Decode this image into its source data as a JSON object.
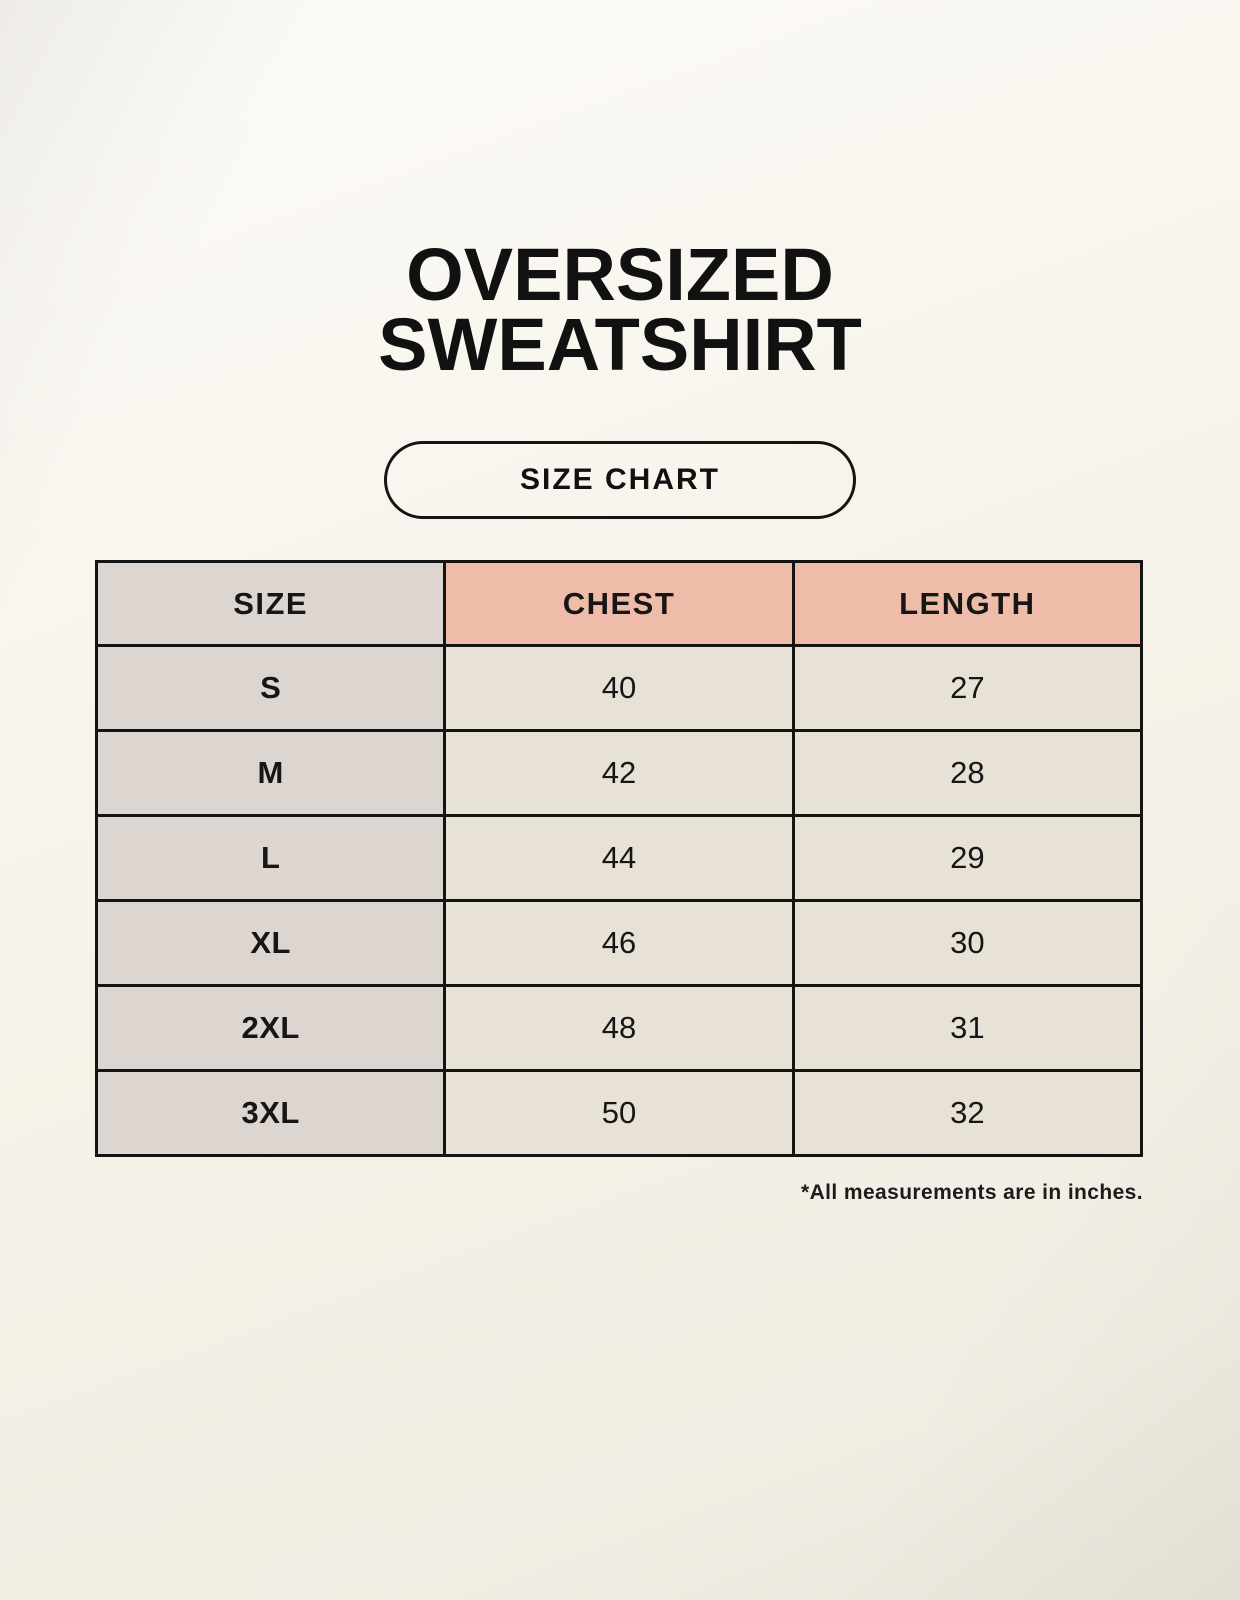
{
  "page": {
    "title_line1": "OVERSIZED",
    "title_line2": "SWEATSHIRT",
    "badge_label": "SIZE CHART",
    "footnote": "*All measurements are in inches."
  },
  "chart_data": {
    "type": "table",
    "title": "Oversized Sweatshirt Size Chart",
    "columns": [
      "SIZE",
      "CHEST",
      "LENGTH"
    ],
    "rows": [
      [
        "S",
        "40",
        "27"
      ],
      [
        "M",
        "42",
        "28"
      ],
      [
        "L",
        "44",
        "29"
      ],
      [
        "XL",
        "46",
        "30"
      ],
      [
        "2XL",
        "48",
        "31"
      ],
      [
        "3XL",
        "50",
        "32"
      ]
    ],
    "units": "inches"
  },
  "colors": {
    "background": "#F7F3EA",
    "header_pink": "#EEBCA8",
    "size_gray": "#DCD5D0",
    "cell_cream": "#E8E1D5",
    "line_black": "#141414",
    "text_black": "#161616"
  }
}
